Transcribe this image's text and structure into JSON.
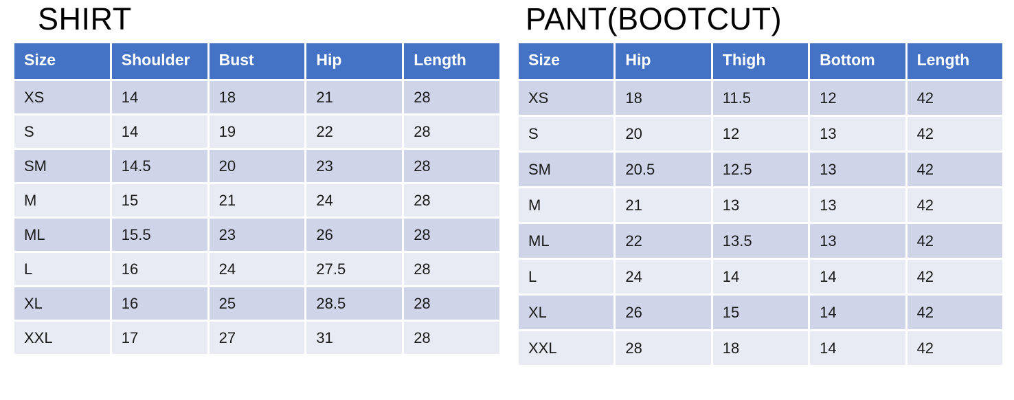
{
  "colors": {
    "header_bg": "#4472c4",
    "header_text": "#ffffff",
    "row_dark": "#cfd4e8",
    "row_light": "#e9ebf4",
    "body_text": "#1a1a1a",
    "title_text": "#000000"
  },
  "tables": [
    {
      "title": "SHIRT",
      "columns": [
        "Size",
        "Shoulder",
        "Bust",
        "Hip",
        "Length"
      ],
      "rows": [
        [
          "XS",
          "14",
          "18",
          "21",
          "28"
        ],
        [
          "S",
          "14",
          "19",
          "22",
          "28"
        ],
        [
          "SM",
          "14.5",
          "20",
          "23",
          "28"
        ],
        [
          "M",
          "15",
          "21",
          "24",
          "28"
        ],
        [
          "ML",
          "15.5",
          "23",
          "26",
          "28"
        ],
        [
          "L",
          "16",
          "24",
          "27.5",
          "28"
        ],
        [
          "XL",
          "16",
          "25",
          "28.5",
          "28"
        ],
        [
          "XXL",
          "17",
          "27",
          "31",
          "28"
        ]
      ]
    },
    {
      "title": "PANT(BOOTCUT)",
      "columns": [
        "Size",
        "Hip",
        "Thigh",
        "Bottom",
        "Length"
      ],
      "rows": [
        [
          "XS",
          "18",
          "11.5",
          "12",
          "42"
        ],
        [
          "S",
          "20",
          "12",
          "13",
          "42"
        ],
        [
          "SM",
          "20.5",
          "12.5",
          "13",
          "42"
        ],
        [
          "M",
          "21",
          "13",
          "13",
          "42"
        ],
        [
          "ML",
          "22",
          "13.5",
          "13",
          "42"
        ],
        [
          "L",
          "24",
          "14",
          "14",
          "42"
        ],
        [
          "XL",
          "26",
          "15",
          "14",
          "42"
        ],
        [
          "XXL",
          "28",
          "18",
          "14",
          "42"
        ]
      ]
    }
  ]
}
